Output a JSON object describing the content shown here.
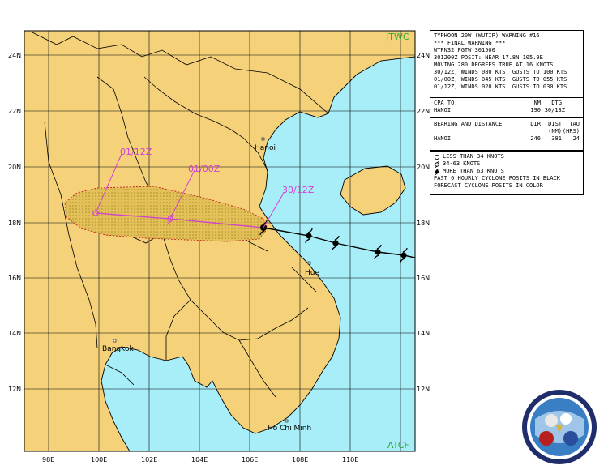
{
  "map": {
    "agency_top": "JTWC",
    "agency_bottom": "ATCF",
    "lat_labels": [
      "24N",
      "22N",
      "20N",
      "18N",
      "16N",
      "14N",
      "12N"
    ],
    "lon_labels": [
      "98E",
      "100E",
      "102E",
      "104E",
      "106E",
      "108E",
      "110E"
    ],
    "cities": [
      {
        "name": "Hanoi"
      },
      {
        "name": "Hue"
      },
      {
        "name": "Bangkok"
      },
      {
        "name": "Ho Chi Minh"
      }
    ],
    "forecast_labels": [
      "01/12Z",
      "01/00Z",
      "30/12Z"
    ],
    "colors": {
      "land": "#f5d27a",
      "water": "#a8eef8",
      "border": "#000000",
      "forecast": "#d040d0",
      "track": "#000000",
      "agency": "#33a833"
    }
  },
  "warning": {
    "title": "TYPHOON 20W (WUTIP) WARNING #16",
    "final": "*** FINAL WARNING ***",
    "wtpn": "WTPN32 PGTW 301500",
    "posit": "301200Z POSIT: NEAR 17.8N 105.9E",
    "moving": "MOVING 280 DEGREES TRUE AT 16 KNOTS",
    "f1": "30/12Z, WINDS 080 KTS, GUSTS TO 100 KTS",
    "f2": "01/00Z, WINDS 045 KTS, GUSTS TO 055 KTS",
    "f3": "01/12Z, WINDS 020 KTS, GUSTS TO 030 KTS"
  },
  "cpa": {
    "h1": "CPA TO:",
    "h2": "NM",
    "h3": "DTG",
    "place": "HANOI",
    "nm": "190",
    "dtg": "30/13Z"
  },
  "bearing": {
    "h1": "BEARING AND DISTANCE",
    "h2": "DIR",
    "h3": "DIST",
    "h4": "TAU",
    "s3": "(NM)",
    "s4": "(HRS)",
    "place": "HANOI",
    "dir": "246",
    "dist": "381",
    "tau": "24"
  },
  "legend": {
    "l1": "LESS THAN 34 KNOTS",
    "l2": "34-63 KNOTS",
    "l3": "MORE THAN 63 KNOTS",
    "l4": "PAST 6 HOURLY CYCLONE POSITS IN BLACK",
    "l5": "FORECAST CYCLONE POSITS IN COLOR"
  }
}
